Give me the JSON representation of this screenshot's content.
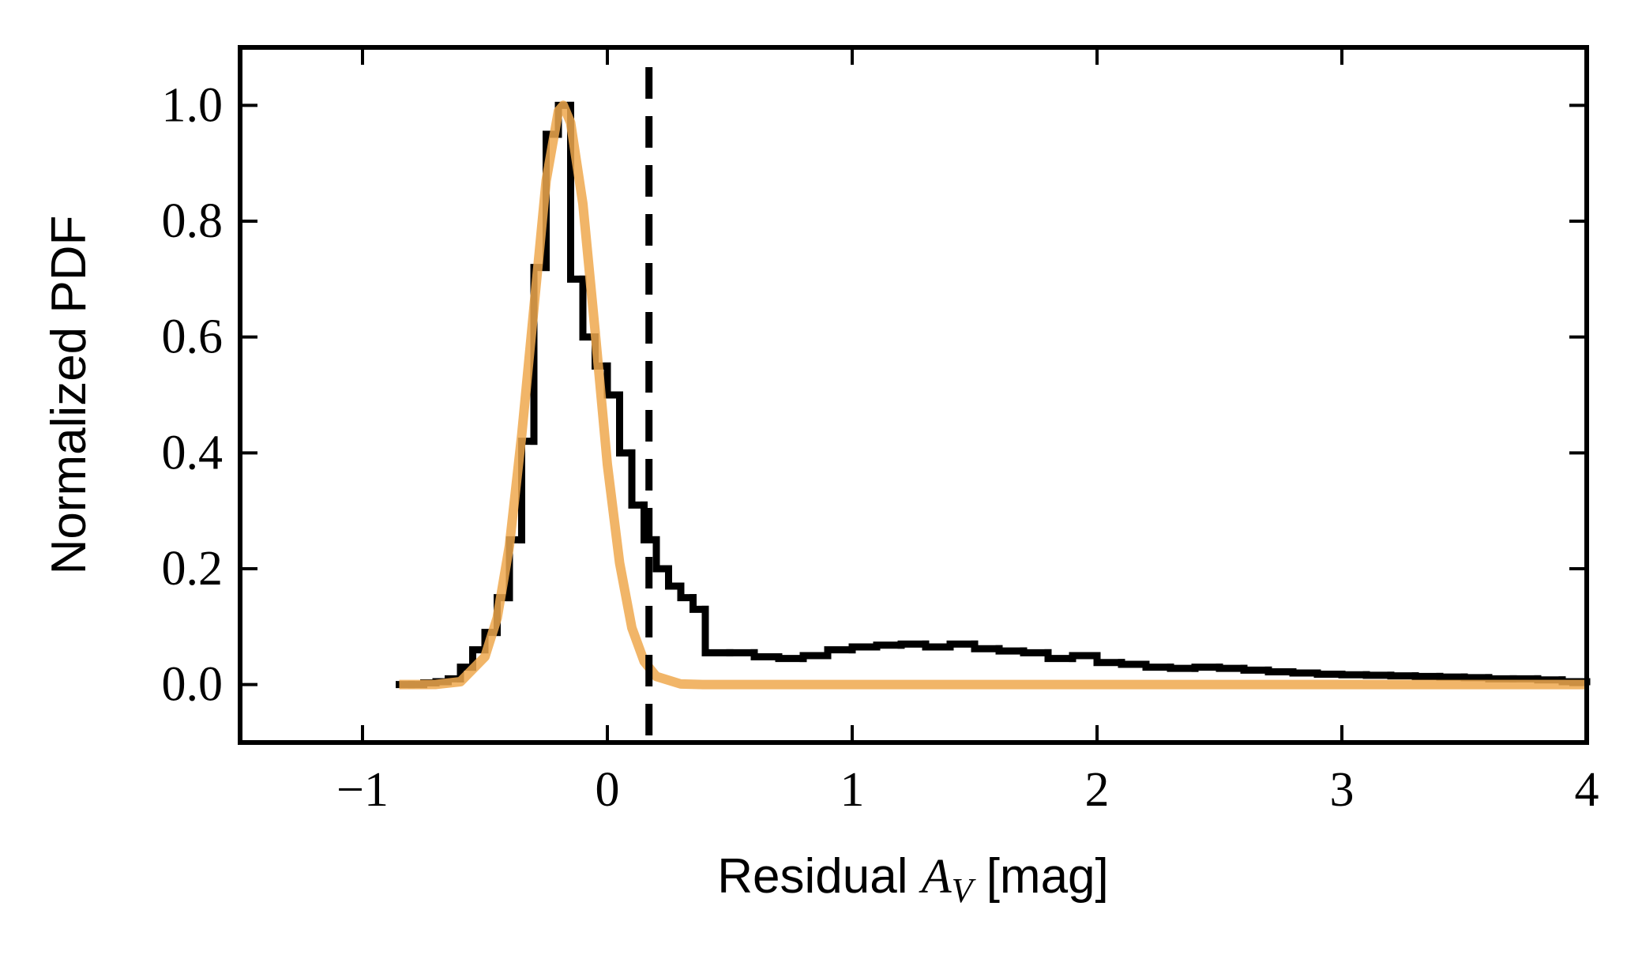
{
  "chart_data": {
    "type": "histogram",
    "xlabel": {
      "text": "Residual ",
      "symbol": "A",
      "subscript": "V",
      "unit": " [mag]"
    },
    "ylabel": "Normalized PDF",
    "color": "#000000",
    "bins": [
      -0.85,
      -0.8,
      -0.75,
      -0.7,
      -0.65,
      -0.6,
      -0.55,
      -0.5,
      -0.45,
      -0.4,
      -0.35,
      -0.3,
      -0.25,
      -0.2,
      -0.15,
      -0.1,
      -0.05,
      0.0,
      0.05,
      0.1,
      0.15,
      0.2,
      0.25,
      0.3,
      0.35,
      0.4,
      0.5,
      0.6,
      0.7,
      0.8,
      0.9,
      1.0,
      1.1,
      1.2,
      1.3,
      1.4,
      1.5,
      1.6,
      1.7,
      1.8,
      1.9,
      2.0,
      2.1,
      2.2,
      2.3,
      2.4,
      2.5,
      2.6,
      2.7,
      2.8,
      2.9,
      3.0,
      3.1,
      3.2,
      3.3,
      3.4,
      3.5,
      3.6,
      3.7,
      3.8,
      3.9,
      4.0
    ],
    "values": [
      0,
      0,
      0.003,
      0.005,
      0.01,
      0.03,
      0.06,
      0.09,
      0.15,
      0.25,
      0.42,
      0.72,
      0.95,
      1.0,
      0.7,
      0.6,
      0.55,
      0.5,
      0.4,
      0.31,
      0.25,
      0.2,
      0.17,
      0.15,
      0.13,
      0.055,
      0.055,
      0.048,
      0.045,
      0.05,
      0.06,
      0.065,
      0.068,
      0.07,
      0.065,
      0.07,
      0.062,
      0.058,
      0.055,
      0.045,
      0.05,
      0.038,
      0.035,
      0.03,
      0.028,
      0.03,
      0.028,
      0.025,
      0.022,
      0.02,
      0.018,
      0.017,
      0.016,
      0.015,
      0.014,
      0.013,
      0.012,
      0.01,
      0.01,
      0.008,
      0.005
    ],
    "overlays": [
      {
        "type": "line",
        "color": "#eea84e",
        "x": [
          -0.85,
          -0.7,
          -0.6,
          -0.5,
          -0.45,
          -0.4,
          -0.35,
          -0.3,
          -0.25,
          -0.2,
          -0.18,
          -0.15,
          -0.1,
          -0.05,
          0,
          0.05,
          0.1,
          0.15,
          0.2,
          0.3,
          0.4,
          1,
          2,
          3,
          4
        ],
        "values": [
          0,
          0.0003,
          0.005,
          0.048,
          0.115,
          0.24,
          0.43,
          0.65,
          0.87,
          0.99,
          1.0,
          0.97,
          0.83,
          0.61,
          0.38,
          0.21,
          0.098,
          0.04,
          0.014,
          0.001,
          0,
          0,
          0,
          0,
          0
        ]
      },
      {
        "type": "vline",
        "color": "#000000",
        "x": 0.17
      }
    ],
    "xlim": [
      -1.5,
      4
    ],
    "ylim": [
      -0.1,
      1.1
    ],
    "xticks": [
      {
        "value": -1,
        "label": "−1"
      },
      0,
      1,
      2,
      3,
      4
    ],
    "yticks": [
      {
        "value": 0,
        "label": "0.0"
      },
      {
        "value": 0.2,
        "label": "0.2"
      },
      {
        "value": 0.4,
        "label": "0.4"
      },
      {
        "value": 0.6,
        "label": "0.6"
      },
      {
        "value": 0.8,
        "label": "0.8"
      },
      {
        "value": 1.0,
        "label": "1.0"
      }
    ]
  }
}
